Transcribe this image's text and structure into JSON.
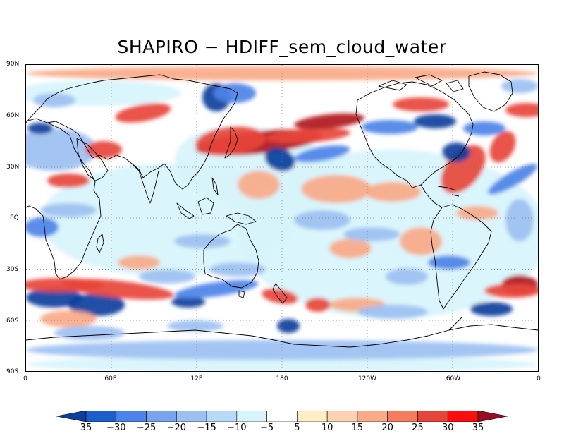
{
  "title": "SHAPIRO − HDIFF_sem_cloud_water",
  "y_axis_labels": [
    "90N",
    "60N",
    "30N",
    "EQ",
    "30S",
    "60S",
    "90S"
  ],
  "x_axis_labels": [
    "0",
    "60E",
    "12E",
    "180",
    "120W",
    "60W",
    "0"
  ],
  "colorbar": {
    "labels": [
      "35",
      "−30",
      "−25",
      "−20",
      "−15",
      "−10",
      "−5",
      "5",
      "10",
      "15",
      "20",
      "25",
      "30",
      "35"
    ],
    "colors": [
      "#0a3f9e",
      "#1c5fcc",
      "#4d83e8",
      "#78a3ee",
      "#9cc0f2",
      "#b8d9f8",
      "#d7f4fb",
      "#ffffff",
      "#fdeec6",
      "#fcd2b2",
      "#f9aa88",
      "#f47b5e",
      "#e8453a",
      "#ff0d0d",
      "#9a0b1f"
    ]
  },
  "palette": {
    "deep_blue": "#0a3f9e",
    "mid_blue": "#4d83e8",
    "light_blue": "#9cc0f2",
    "pale_blue": "#d7f4fb",
    "pale_orange": "#fdeec6",
    "salmon": "#f9aa88",
    "red": "#e8453a",
    "dark_red": "#b0141e"
  }
}
